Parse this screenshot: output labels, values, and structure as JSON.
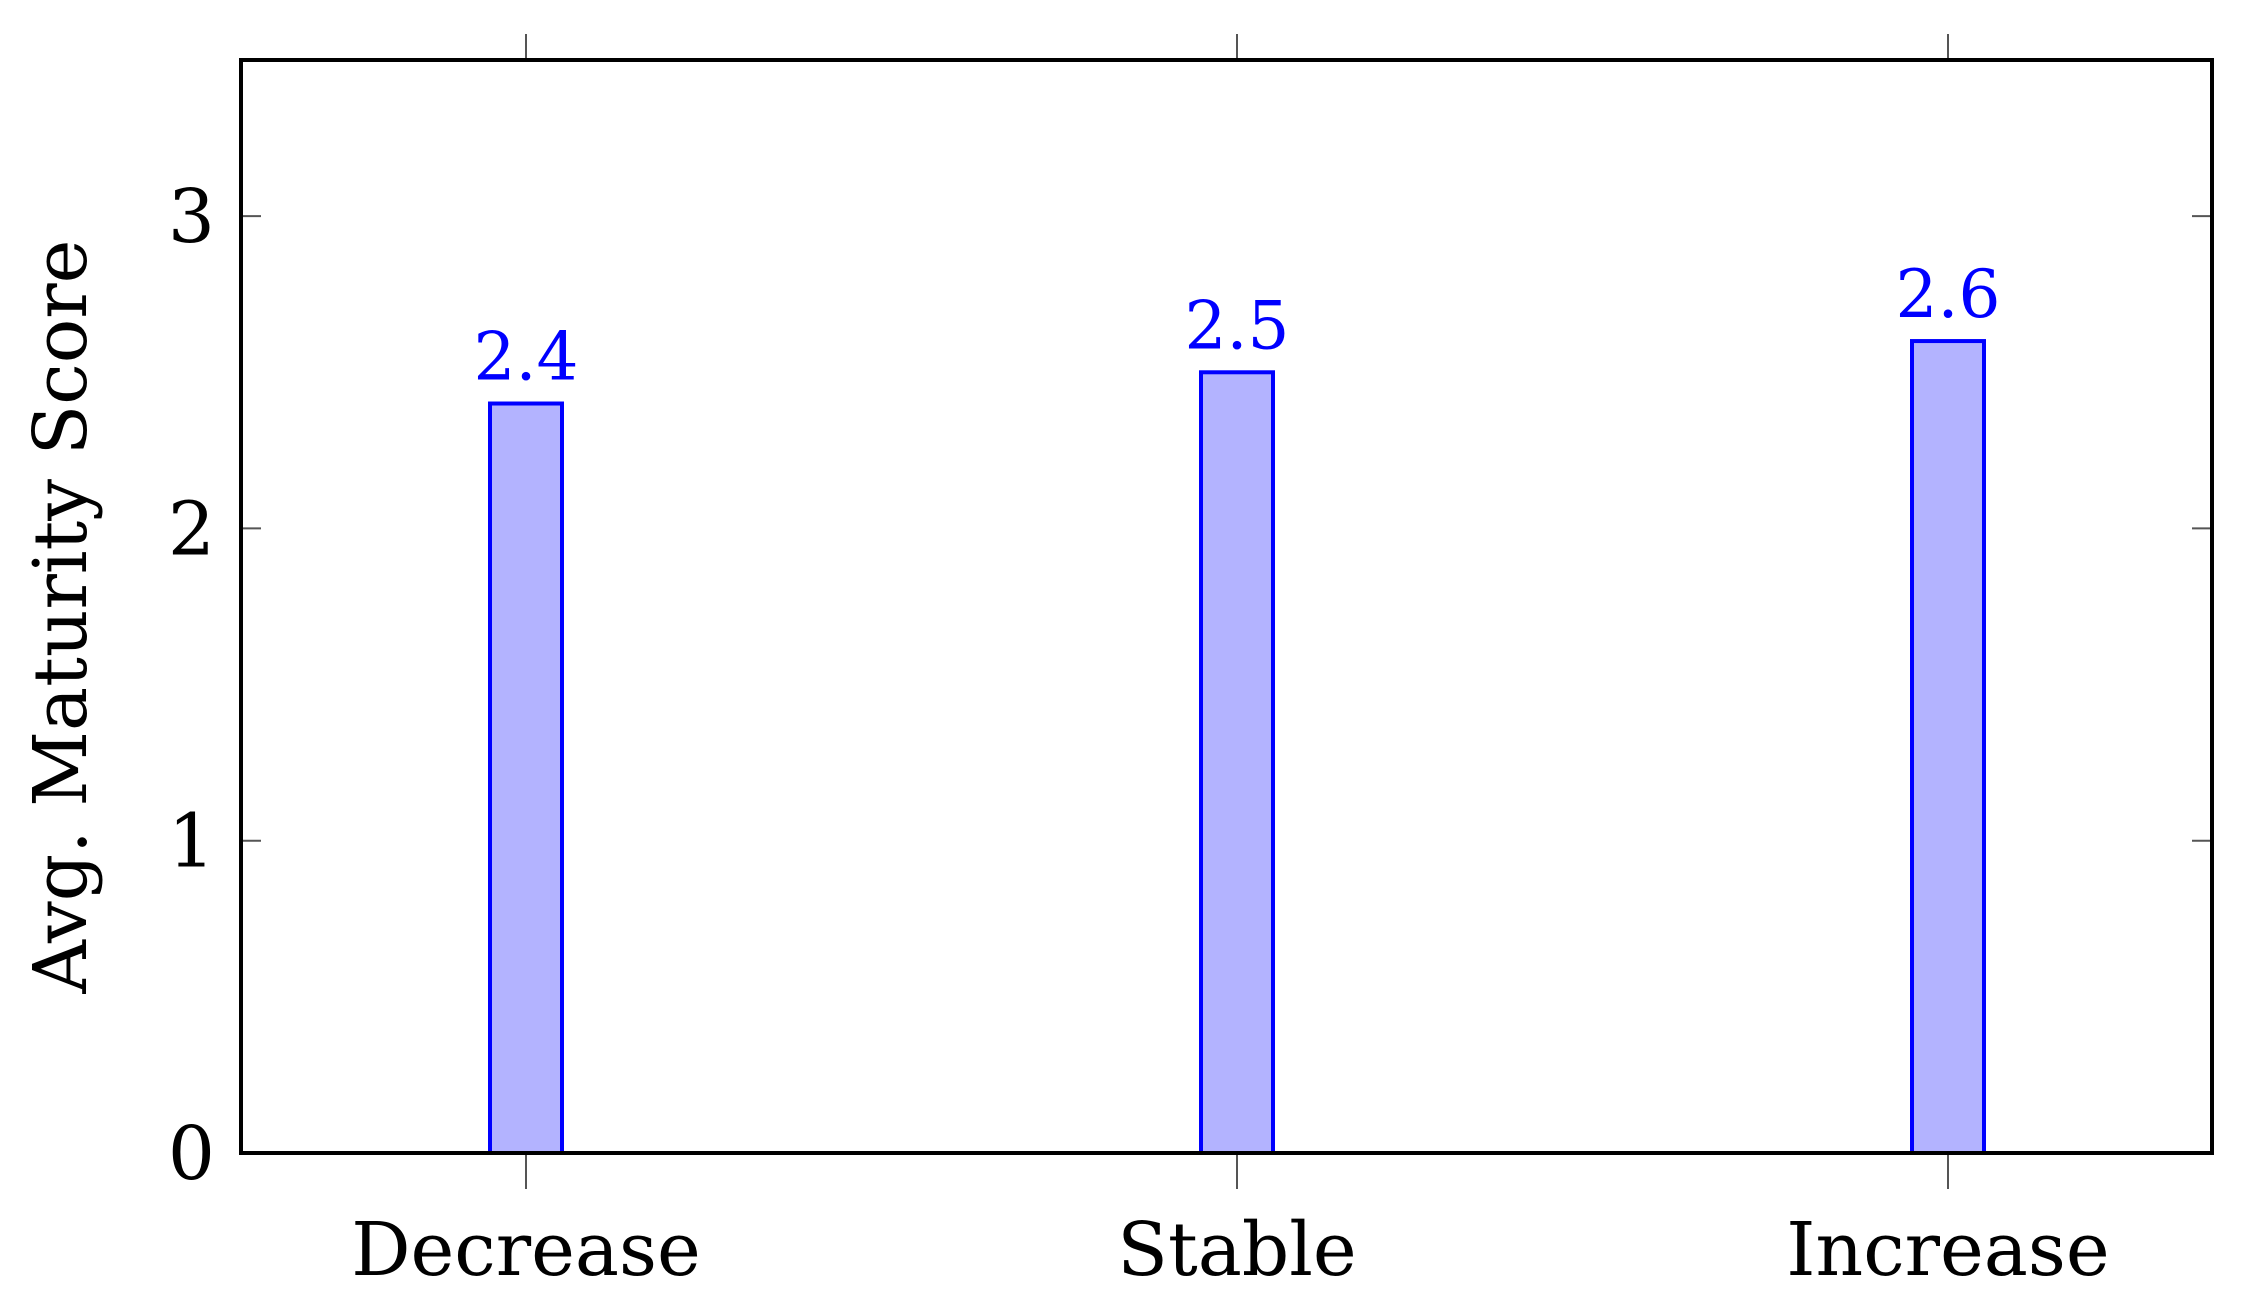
{
  "chart_data": {
    "type": "bar",
    "categories": [
      "Decrease",
      "Stable",
      "Increase"
    ],
    "values": [
      2.4,
      2.5,
      2.6
    ],
    "data_labels": [
      "2.4",
      "2.5",
      "2.6"
    ],
    "title": "",
    "xlabel": "",
    "ylabel": "Avg. Maturity Score",
    "ylim": [
      0,
      3.5
    ],
    "yticks": [
      0,
      1,
      2,
      3
    ],
    "ytick_labels": [
      "0",
      "1",
      "2",
      "3"
    ],
    "grid": false,
    "colors": {
      "bar_fill": "#b3b3ff",
      "bar_stroke": "#0000ff",
      "data_label": "#0000ff",
      "axis": "#000000"
    }
  }
}
